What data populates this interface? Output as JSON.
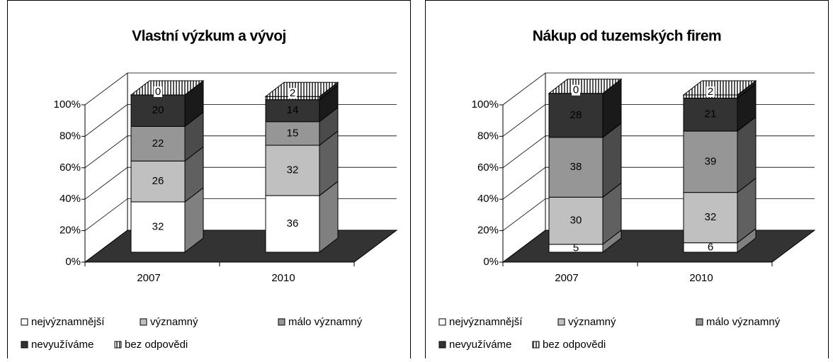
{
  "chart_data": [
    {
      "type": "bar3d-stacked",
      "title": "Vlastní výzkum a vývoj",
      "categories": [
        "2007",
        "2010"
      ],
      "series": [
        {
          "name": "nejvýznamnější",
          "color": "#ffffff",
          "values": [
            32,
            36
          ]
        },
        {
          "name": "významný",
          "color": "#c0c0c0",
          "values": [
            26,
            32
          ]
        },
        {
          "name": "málo významný",
          "color": "#969696",
          "values": [
            22,
            15
          ]
        },
        {
          "name": "nevyužíváme",
          "color": "#333333",
          "values": [
            20,
            14
          ]
        },
        {
          "name": "bez odpovědi",
          "color": "hatch",
          "values": [
            0,
            2
          ]
        }
      ],
      "ylim": [
        0,
        100
      ],
      "yticks": [
        {
          "value": 0,
          "label": "0%"
        },
        {
          "value": 20,
          "label": "20%"
        },
        {
          "value": 40,
          "label": "40%"
        },
        {
          "value": 60,
          "label": "60%"
        },
        {
          "value": 80,
          "label": "80%"
        },
        {
          "value": 100,
          "label": "100%"
        }
      ],
      "grid": true
    },
    {
      "type": "bar3d-stacked",
      "title": "Nákup od tuzemských firem",
      "categories": [
        "2007",
        "2010"
      ],
      "series": [
        {
          "name": "nejvýznamnější",
          "color": "#ffffff",
          "values": [
            5,
            6
          ]
        },
        {
          "name": "významný",
          "color": "#c0c0c0",
          "values": [
            30,
            32
          ]
        },
        {
          "name": "málo významný",
          "color": "#969696",
          "values": [
            38,
            39
          ]
        },
        {
          "name": "nevyužíváme",
          "color": "#333333",
          "values": [
            28,
            21
          ]
        },
        {
          "name": "bez odpovědi",
          "color": "hatch",
          "values": [
            0,
            2
          ]
        }
      ],
      "ylim": [
        0,
        100
      ],
      "yticks": [
        {
          "value": 0,
          "label": "0%"
        },
        {
          "value": 20,
          "label": "20%"
        },
        {
          "value": 40,
          "label": "40%"
        },
        {
          "value": 60,
          "label": "60%"
        },
        {
          "value": 80,
          "label": "80%"
        },
        {
          "value": 100,
          "label": "100%"
        }
      ],
      "grid": true
    }
  ]
}
